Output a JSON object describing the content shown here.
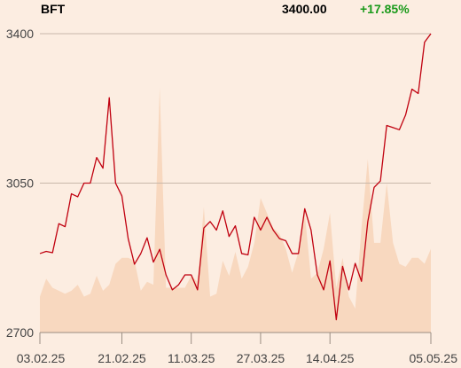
{
  "header": {
    "ticker": "BFT",
    "price": "3400.00",
    "change": "+17.85%"
  },
  "colors": {
    "background": "#fcede1",
    "line": "#c0000f",
    "volume": "#f8d8bf",
    "grid": "#c8b8aa",
    "change_positive": "#1a9a1a"
  },
  "chart_data": {
    "type": "line",
    "title": "BFT",
    "xlabel": "",
    "ylabel": "",
    "ylim": [
      2700,
      3400
    ],
    "y_ticks": [
      {
        "value": 2700,
        "label": "2700"
      },
      {
        "value": 3050,
        "label": "3050"
      },
      {
        "value": 3400,
        "label": "3400"
      }
    ],
    "x_ticks": [
      "03.02.25",
      "21.02.25",
      "11.03.25",
      "27.03.25",
      "14.04.25",
      "05.05.25"
    ],
    "grid": true,
    "series": [
      {
        "name": "",
        "values": [
          2885,
          2890,
          2887,
          2955,
          2948,
          3025,
          3018,
          3050,
          3050,
          3110,
          3085,
          3250,
          3050,
          3020,
          2920,
          2860,
          2885,
          2922,
          2865,
          2895,
          2835,
          2800,
          2812,
          2835,
          2835,
          2800,
          2945,
          2960,
          2940,
          2985,
          2925,
          2950,
          2885,
          2882,
          2970,
          2940,
          2970,
          2940,
          2920,
          2915,
          2885,
          2885,
          2990,
          2940,
          2835,
          2800,
          2868,
          2730,
          2855,
          2800,
          2862,
          2820,
          2960,
          3040,
          3055,
          3185,
          3180,
          3175,
          3210,
          3270,
          3260,
          3380,
          3400
        ]
      }
    ],
    "volume": {
      "name": "",
      "values": [
        0.12,
        0.18,
        0.15,
        0.14,
        0.13,
        0.14,
        0.16,
        0.12,
        0.13,
        0.19,
        0.14,
        0.16,
        0.23,
        0.25,
        0.25,
        0.24,
        0.14,
        0.17,
        0.16,
        0.82,
        0.15,
        0.15,
        0.15,
        0.15,
        0.19,
        0.17,
        0.42,
        0.12,
        0.13,
        0.24,
        0.19,
        0.27,
        0.18,
        0.22,
        0.3,
        0.45,
        0.4,
        0.35,
        0.33,
        0.28,
        0.2,
        0.27,
        0.4,
        0.18,
        0.2,
        0.28,
        0.4,
        0.15,
        0.25,
        0.12,
        0.08,
        0.35,
        0.58,
        0.3,
        0.3,
        0.5,
        0.3,
        0.23,
        0.22,
        0.25,
        0.25,
        0.23,
        0.28
      ]
    }
  }
}
